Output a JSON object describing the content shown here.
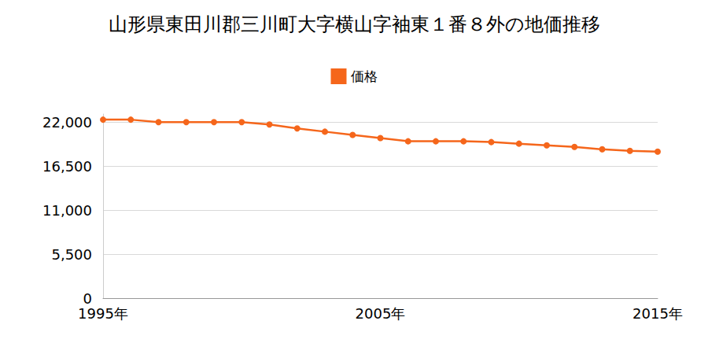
{
  "chart_data": {
    "type": "line",
    "title": "山形県東田川郡三川町大字横山字袖東１番８外の地価推移",
    "x": [
      1995,
      1996,
      1997,
      1998,
      1999,
      2000,
      2001,
      2002,
      2003,
      2004,
      2005,
      2006,
      2007,
      2008,
      2009,
      2010,
      2011,
      2012,
      2013,
      2014,
      2015
    ],
    "series": [
      {
        "name": "価格",
        "color": "#f5661b",
        "marker": "circle",
        "values": [
          22300,
          22300,
          22000,
          22000,
          22000,
          22000,
          21700,
          21200,
          20800,
          20400,
          20000,
          19600,
          19600,
          19600,
          19500,
          19300,
          19100,
          18900,
          18600,
          18400,
          18300
        ]
      }
    ],
    "xlim": [
      1995,
      2015
    ],
    "xticks": [
      {
        "value": 1995,
        "label": "1995年"
      },
      {
        "value": 2005,
        "label": "2005年"
      },
      {
        "value": 2015,
        "label": "2015年"
      }
    ],
    "ylim": [
      0,
      23000
    ],
    "yticks": [
      0,
      {
        "value": 5500,
        "label": "5,500"
      },
      {
        "value": 11000,
        "label": "11,000"
      },
      {
        "value": 16500,
        "label": "16,500"
      },
      {
        "value": 22000,
        "label": "22,000"
      }
    ],
    "grid": true,
    "legend": "top"
  }
}
